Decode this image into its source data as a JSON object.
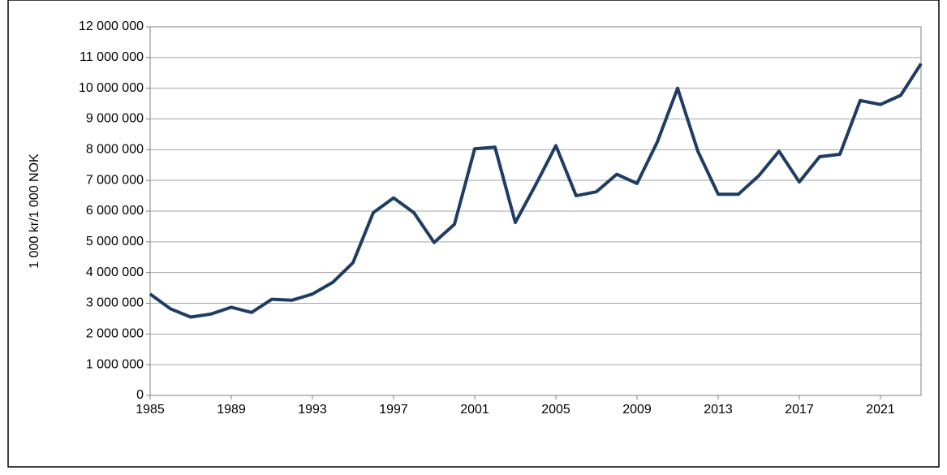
{
  "chart_data": {
    "type": "line",
    "y_label": "1 000 kr/1 000 NOK",
    "x": [
      1985,
      1986,
      1987,
      1988,
      1989,
      1990,
      1991,
      1992,
      1993,
      1994,
      1995,
      1996,
      1997,
      1998,
      1999,
      2000,
      2001,
      2002,
      2003,
      2004,
      2005,
      2006,
      2007,
      2008,
      2009,
      2010,
      2011,
      2012,
      2013,
      2014,
      2015,
      2016,
      2017,
      2018,
      2019,
      2020,
      2021,
      2022,
      2023
    ],
    "series": [
      {
        "color": "#1f3d63",
        "values": [
          3300000,
          2820000,
          2550000,
          2650000,
          2870000,
          2700000,
          3130000,
          3100000,
          3300000,
          3680000,
          4320000,
          5950000,
          6430000,
          5950000,
          4980000,
          5570000,
          8030000,
          8080000,
          5630000,
          6850000,
          8130000,
          6500000,
          6630000,
          7200000,
          6900000,
          8250000,
          10000000,
          7950000,
          6550000,
          6550000,
          7150000,
          7950000,
          6950000,
          7770000,
          7850000,
          9600000,
          9470000,
          9770000,
          10800000
        ]
      }
    ],
    "xlim": [
      1985,
      2023
    ],
    "xticks": [
      1985,
      1989,
      1993,
      1997,
      2001,
      2005,
      2009,
      2013,
      2017,
      2021
    ],
    "ylim": [
      0,
      12000000
    ],
    "yticks": [
      0,
      {
        "value": 1000000,
        "label": "1 000 000"
      },
      {
        "value": 2000000,
        "label": "2 000 000"
      },
      {
        "value": 3000000,
        "label": "3 000 000"
      },
      {
        "value": 4000000,
        "label": "4 000 000"
      },
      {
        "value": 5000000,
        "label": "5 000 000"
      },
      {
        "value": 6000000,
        "label": "6 000 000"
      },
      {
        "value": 7000000,
        "label": "7 000 000"
      },
      {
        "value": 8000000,
        "label": "8 000 000"
      },
      {
        "value": 9000000,
        "label": "9 000 000"
      },
      {
        "value": 10000000,
        "label": "10 000 000"
      },
      {
        "value": 11000000,
        "label": "11 000 000"
      },
      {
        "value": 12000000,
        "label": "12 000 000"
      }
    ],
    "grid": true
  }
}
